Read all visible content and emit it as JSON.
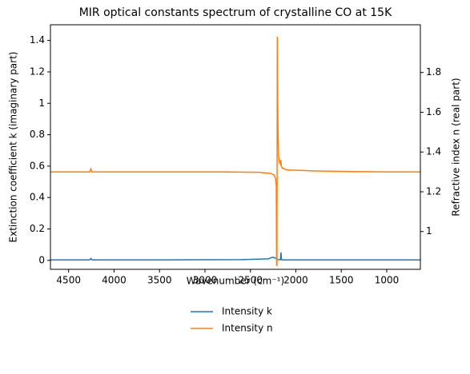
{
  "chart_data": {
    "type": "line",
    "title": "MIR optical constants spectrum of crystalline CO at 15K",
    "xlabel": "Wavenumber (cm⁻¹)",
    "ylabel": "Extinction coefficient k (imaginary part)",
    "y2label": "Refractive index n (real part)",
    "xlim": [
      4700,
      630
    ],
    "xticks": [
      4500,
      4000,
      3500,
      3000,
      2500,
      2000,
      1500,
      1000
    ],
    "ylim": [
      -0.057,
      1.5
    ],
    "yticks": [
      0.0,
      0.2,
      0.4,
      0.6,
      0.8,
      1.0,
      1.2,
      1.4
    ],
    "y2lim": [
      0.81,
      2.04
    ],
    "y2ticks": [
      1.0,
      1.2,
      1.4,
      1.6,
      1.8
    ],
    "legend": "below",
    "series": [
      {
        "name": "Intensity k",
        "color": "#1f77b4",
        "axis": "y",
        "x": [
          4700,
          4270,
          4255,
          4245,
          4230,
          3500,
          2600,
          2300,
          2260,
          2240,
          2210,
          2200,
          2170,
          2163,
          2158,
          2152,
          2140,
          1800,
          1000,
          630
        ],
        "values": [
          0.003,
          0.003,
          0.012,
          0.004,
          0.003,
          0.003,
          0.005,
          0.01,
          0.02,
          0.018,
          0.01,
          0.005,
          0.004,
          0.05,
          0.006,
          0.003,
          0.003,
          0.003,
          0.003,
          0.003
        ]
      },
      {
        "name": "Intensity n",
        "color": "#ff7f0e",
        "axis": "y2",
        "x": [
          4700,
          4270,
          4255,
          4245,
          4230,
          3500,
          2800,
          2400,
          2280,
          2240,
          2225,
          2215,
          2212,
          2208,
          2204,
          2202,
          2196,
          2190,
          2180,
          2170,
          2165,
          2160,
          2150,
          2100,
          1800,
          1400,
          1000,
          630
        ],
        "values": [
          1.3,
          1.3,
          1.315,
          1.3,
          1.3,
          1.3,
          1.3,
          1.298,
          1.293,
          1.285,
          1.27,
          1.23,
          0.83,
          0.83,
          1.98,
          1.75,
          1.5,
          1.38,
          1.35,
          1.34,
          1.36,
          1.33,
          1.32,
          1.31,
          1.305,
          1.302,
          1.3,
          1.3
        ]
      }
    ]
  }
}
